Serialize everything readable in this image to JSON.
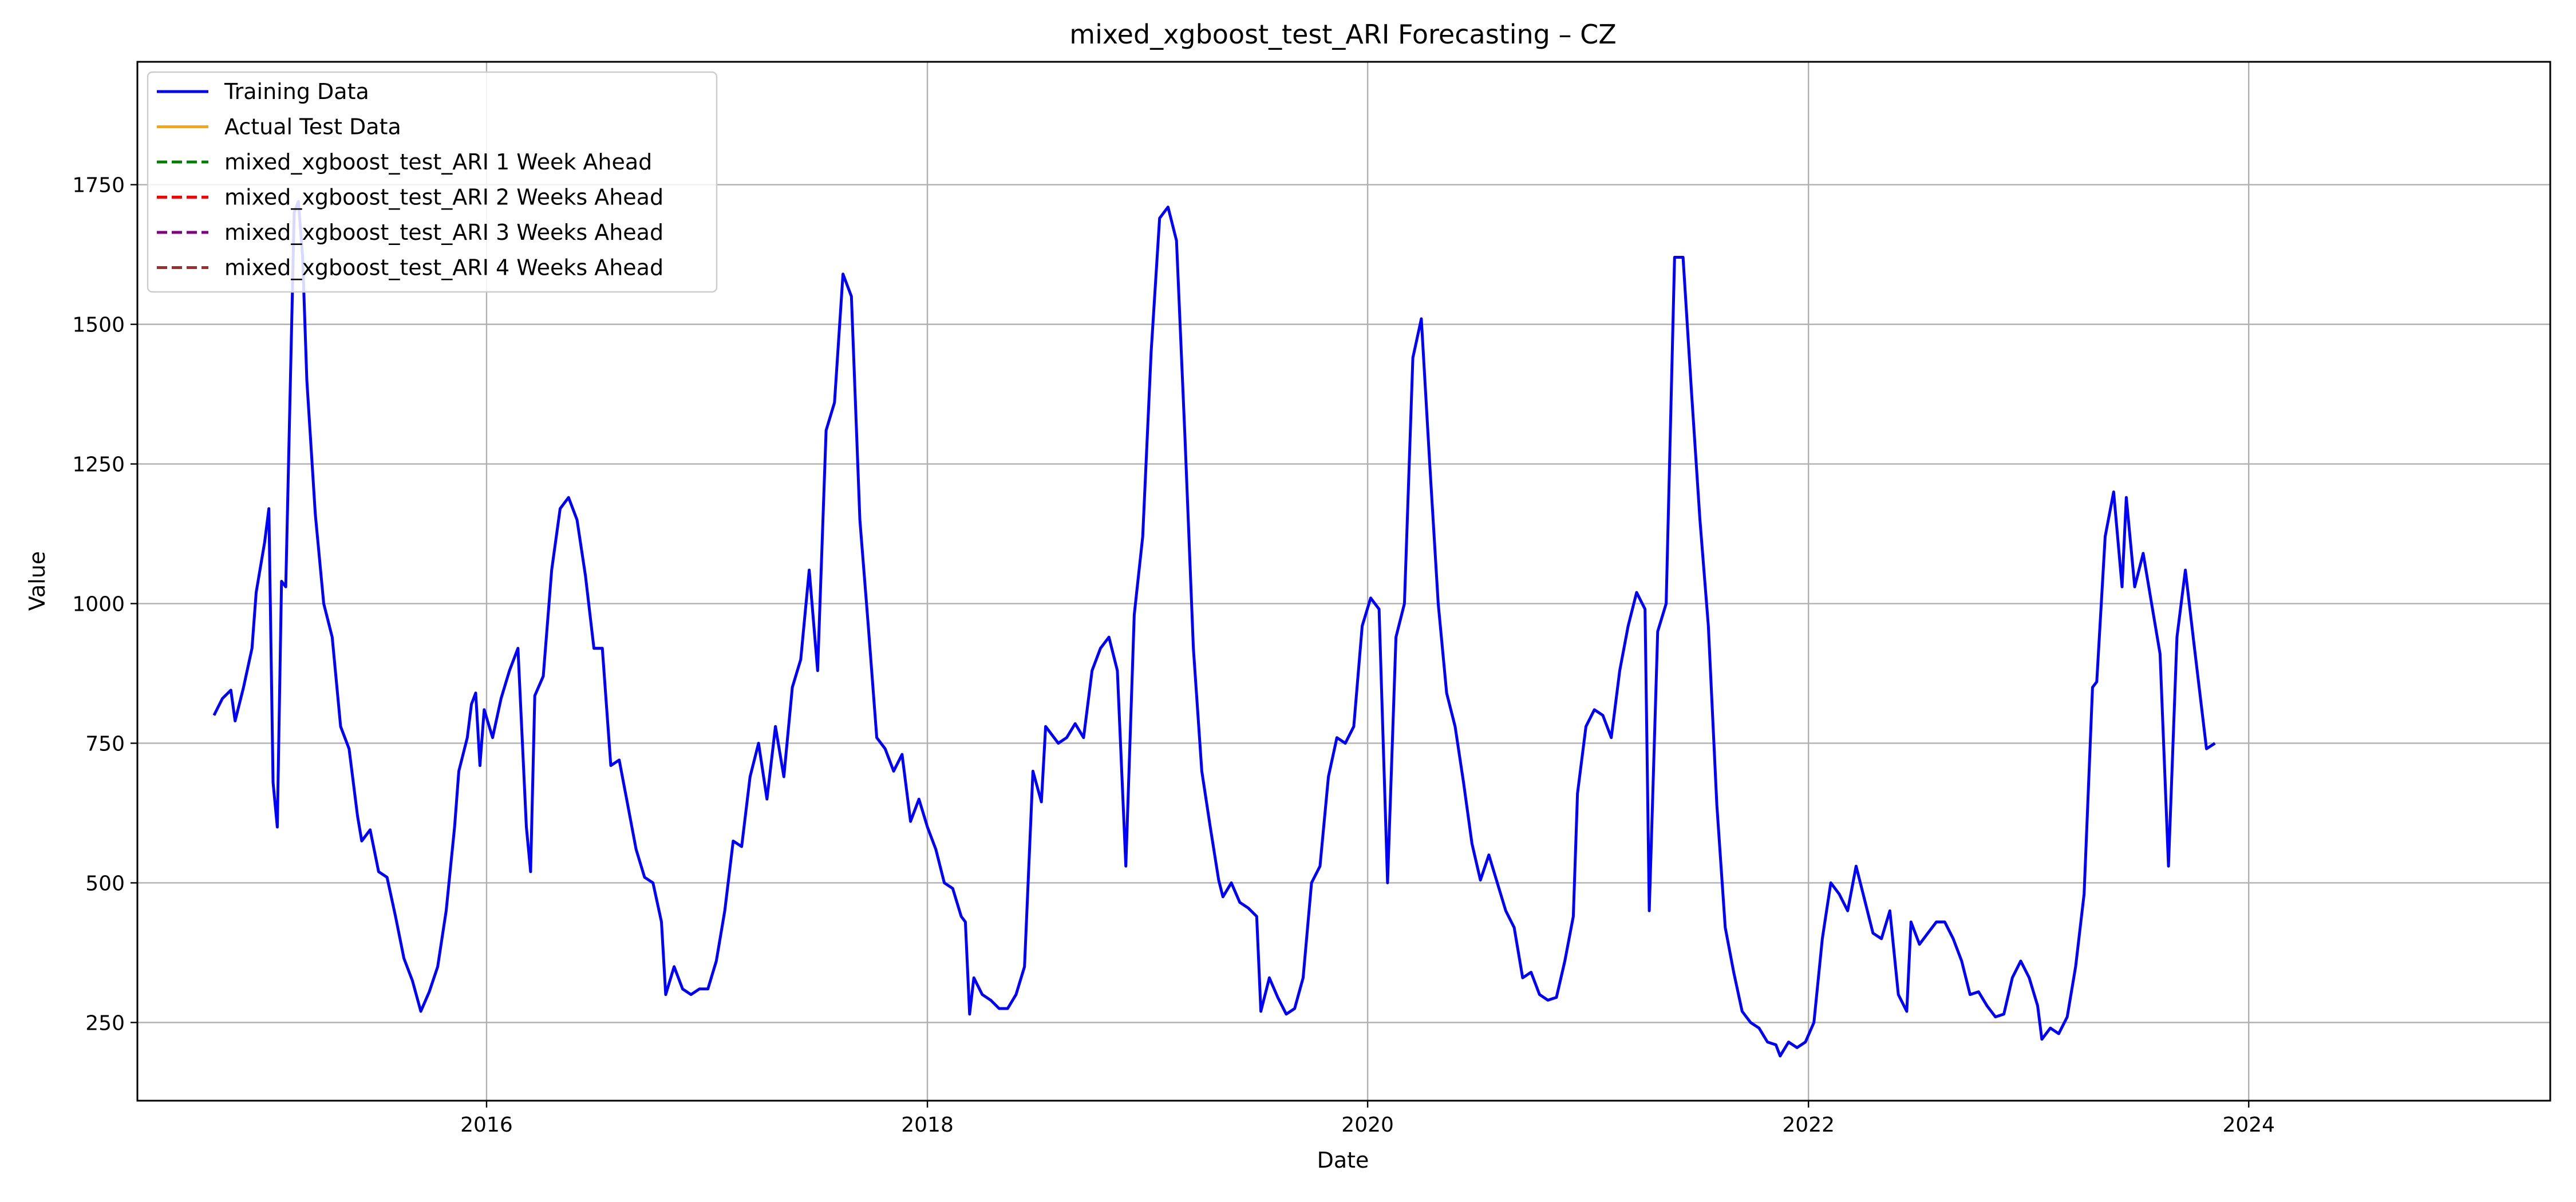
{
  "chart_data": {
    "type": "line",
    "title": "mixed_xgboost_test_ARI Forecasting – CZ",
    "xlabel": "Date",
    "ylabel": "Value",
    "xlim": [
      "2014-06-01",
      "2025-05-15"
    ],
    "ylim": [
      110,
      1970
    ],
    "x_ticks": [
      "2016",
      "2018",
      "2020",
      "2022",
      "2024"
    ],
    "y_ticks": [
      250,
      500,
      750,
      1000,
      1250,
      1500,
      1750
    ],
    "grid": true,
    "legend_position": "top-left",
    "series": [
      {
        "name": "Training Data",
        "color": "#0000ff",
        "style": "solid",
        "points": [
          [
            "2014-10-06",
            800
          ],
          [
            "2014-10-20",
            830
          ],
          [
            "2014-11-03",
            845
          ],
          [
            "2014-11-10",
            790
          ],
          [
            "2014-11-24",
            850
          ],
          [
            "2014-12-08",
            920
          ],
          [
            "2014-12-15",
            1020
          ],
          [
            "2014-12-29",
            1110
          ],
          [
            "2015-01-05",
            1170
          ],
          [
            "2015-01-12",
            680
          ],
          [
            "2015-01-19",
            600
          ],
          [
            "2015-01-26",
            1040
          ],
          [
            "2015-02-02",
            1030
          ],
          [
            "2015-02-16",
            1700
          ],
          [
            "2015-02-23",
            1720
          ],
          [
            "2015-03-02",
            1620
          ],
          [
            "2015-03-09",
            1400
          ],
          [
            "2015-03-23",
            1160
          ],
          [
            "2015-04-06",
            1000
          ],
          [
            "2015-04-20",
            940
          ],
          [
            "2015-05-04",
            780
          ],
          [
            "2015-05-18",
            740
          ],
          [
            "2015-06-01",
            620
          ],
          [
            "2015-06-08",
            575
          ],
          [
            "2015-06-22",
            595
          ],
          [
            "2015-07-06",
            520
          ],
          [
            "2015-07-20",
            510
          ],
          [
            "2015-08-03",
            440
          ],
          [
            "2015-08-17",
            365
          ],
          [
            "2015-08-31",
            325
          ],
          [
            "2015-09-14",
            270
          ],
          [
            "2015-09-28",
            305
          ],
          [
            "2015-10-12",
            350
          ],
          [
            "2015-10-26",
            450
          ],
          [
            "2015-11-09",
            600
          ],
          [
            "2015-11-16",
            700
          ],
          [
            "2015-11-30",
            760
          ],
          [
            "2015-12-07",
            820
          ],
          [
            "2015-12-14",
            840
          ],
          [
            "2015-12-21",
            710
          ],
          [
            "2015-12-28",
            810
          ],
          [
            "2016-01-11",
            760
          ],
          [
            "2016-01-25",
            830
          ],
          [
            "2016-02-08",
            880
          ],
          [
            "2016-02-22",
            920
          ],
          [
            "2016-03-07",
            600
          ],
          [
            "2016-03-14",
            520
          ],
          [
            "2016-03-21",
            835
          ],
          [
            "2016-04-04",
            870
          ],
          [
            "2016-04-18",
            1060
          ],
          [
            "2016-05-02",
            1170
          ],
          [
            "2016-05-16",
            1190
          ],
          [
            "2016-05-30",
            1150
          ],
          [
            "2016-06-13",
            1050
          ],
          [
            "2016-06-27",
            920
          ],
          [
            "2016-07-11",
            920
          ],
          [
            "2016-07-25",
            710
          ],
          [
            "2016-08-08",
            720
          ],
          [
            "2016-08-22",
            640
          ],
          [
            "2016-09-05",
            560
          ],
          [
            "2016-09-19",
            510
          ],
          [
            "2016-10-03",
            500
          ],
          [
            "2016-10-17",
            430
          ],
          [
            "2016-10-24",
            300
          ],
          [
            "2016-11-07",
            350
          ],
          [
            "2016-11-21",
            310
          ],
          [
            "2016-12-05",
            300
          ],
          [
            "2016-12-19",
            310
          ],
          [
            "2017-01-02",
            310
          ],
          [
            "2017-01-16",
            360
          ],
          [
            "2017-01-30",
            450
          ],
          [
            "2017-02-13",
            575
          ],
          [
            "2017-02-27",
            565
          ],
          [
            "2017-03-13",
            690
          ],
          [
            "2017-03-27",
            750
          ],
          [
            "2017-04-10",
            650
          ],
          [
            "2017-04-24",
            780
          ],
          [
            "2017-05-08",
            690
          ],
          [
            "2017-05-22",
            850
          ],
          [
            "2017-06-05",
            900
          ],
          [
            "2017-06-19",
            1060
          ],
          [
            "2017-07-03",
            880
          ],
          [
            "2017-07-17",
            1310
          ],
          [
            "2017-07-31",
            1360
          ],
          [
            "2017-08-14",
            1590
          ],
          [
            "2017-08-28",
            1550
          ],
          [
            "2017-09-11",
            1150
          ],
          [
            "2017-09-25",
            960
          ],
          [
            "2017-10-09",
            760
          ],
          [
            "2017-10-23",
            740
          ],
          [
            "2017-11-06",
            700
          ],
          [
            "2017-11-20",
            730
          ],
          [
            "2017-12-04",
            610
          ],
          [
            "2017-12-18",
            650
          ],
          [
            "2018-01-01",
            600
          ],
          [
            "2018-01-15",
            560
          ],
          [
            "2018-01-29",
            500
          ],
          [
            "2018-02-12",
            490
          ],
          [
            "2018-02-26",
            440
          ],
          [
            "2018-03-05",
            430
          ],
          [
            "2018-03-12",
            265
          ],
          [
            "2018-03-19",
            330
          ],
          [
            "2018-04-02",
            300
          ],
          [
            "2018-04-16",
            290
          ],
          [
            "2018-04-30",
            275
          ],
          [
            "2018-05-14",
            275
          ],
          [
            "2018-05-28",
            300
          ],
          [
            "2018-06-11",
            350
          ],
          [
            "2018-06-25",
            700
          ],
          [
            "2018-07-09",
            645
          ],
          [
            "2018-07-16",
            780
          ],
          [
            "2018-08-06",
            750
          ],
          [
            "2018-08-20",
            760
          ],
          [
            "2018-09-03",
            785
          ],
          [
            "2018-09-17",
            760
          ],
          [
            "2018-10-01",
            880
          ],
          [
            "2018-10-15",
            920
          ],
          [
            "2018-10-29",
            940
          ],
          [
            "2018-11-12",
            880
          ],
          [
            "2018-11-26",
            530
          ],
          [
            "2018-12-10",
            980
          ],
          [
            "2018-12-24",
            1120
          ],
          [
            "2019-01-07",
            1450
          ],
          [
            "2019-01-21",
            1690
          ],
          [
            "2019-02-04",
            1710
          ],
          [
            "2019-02-18",
            1650
          ],
          [
            "2019-03-04",
            1300
          ],
          [
            "2019-03-18",
            920
          ],
          [
            "2019-04-01",
            700
          ],
          [
            "2019-04-15",
            600
          ],
          [
            "2019-04-29",
            505
          ],
          [
            "2019-05-06",
            475
          ],
          [
            "2019-05-20",
            500
          ],
          [
            "2019-06-03",
            465
          ],
          [
            "2019-06-17",
            455
          ],
          [
            "2019-07-01",
            440
          ],
          [
            "2019-07-08",
            270
          ],
          [
            "2019-07-22",
            330
          ],
          [
            "2019-08-05",
            295
          ],
          [
            "2019-08-19",
            265
          ],
          [
            "2019-09-02",
            275
          ],
          [
            "2019-09-16",
            330
          ],
          [
            "2019-09-30",
            500
          ],
          [
            "2019-10-14",
            530
          ],
          [
            "2019-10-28",
            690
          ],
          [
            "2019-11-11",
            760
          ],
          [
            "2019-11-25",
            750
          ],
          [
            "2019-12-09",
            780
          ],
          [
            "2019-12-23",
            960
          ],
          [
            "2020-01-06",
            1010
          ],
          [
            "2020-01-20",
            990
          ],
          [
            "2020-02-03",
            500
          ],
          [
            "2020-02-17",
            940
          ],
          [
            "2020-03-02",
            1000
          ],
          [
            "2020-03-16",
            1440
          ],
          [
            "2020-03-30",
            1510
          ],
          [
            "2020-04-13",
            1250
          ],
          [
            "2020-04-27",
            1000
          ],
          [
            "2020-05-11",
            840
          ],
          [
            "2020-05-25",
            780
          ],
          [
            "2020-06-08",
            680
          ],
          [
            "2020-06-22",
            570
          ],
          [
            "2020-07-06",
            505
          ],
          [
            "2020-07-20",
            550
          ],
          [
            "2020-08-03",
            500
          ],
          [
            "2020-08-17",
            450
          ],
          [
            "2020-08-31",
            420
          ],
          [
            "2020-09-14",
            330
          ],
          [
            "2020-09-28",
            340
          ],
          [
            "2020-10-12",
            300
          ],
          [
            "2020-10-26",
            290
          ],
          [
            "2020-11-09",
            295
          ],
          [
            "2020-11-23",
            360
          ],
          [
            "2020-12-07",
            440
          ],
          [
            "2020-12-14",
            660
          ],
          [
            "2020-12-28",
            780
          ],
          [
            "2021-01-11",
            810
          ],
          [
            "2021-01-25",
            800
          ],
          [
            "2021-02-08",
            760
          ],
          [
            "2021-02-22",
            880
          ],
          [
            "2021-03-08",
            960
          ],
          [
            "2021-03-22",
            1020
          ],
          [
            "2021-04-05",
            990
          ],
          [
            "2021-04-12",
            450
          ],
          [
            "2021-04-26",
            950
          ],
          [
            "2021-05-10",
            1000
          ],
          [
            "2021-05-24",
            1620
          ],
          [
            "2021-06-07",
            1620
          ],
          [
            "2021-06-21",
            1380
          ],
          [
            "2021-07-05",
            1150
          ],
          [
            "2021-07-19",
            960
          ],
          [
            "2021-08-02",
            640
          ],
          [
            "2021-08-16",
            420
          ],
          [
            "2021-08-30",
            340
          ],
          [
            "2021-09-13",
            270
          ],
          [
            "2021-09-27",
            250
          ],
          [
            "2021-10-11",
            240
          ],
          [
            "2021-10-25",
            215
          ],
          [
            "2021-11-08",
            210
          ],
          [
            "2021-11-15",
            190
          ],
          [
            "2021-11-29",
            215
          ],
          [
            "2021-12-13",
            205
          ],
          [
            "2021-12-27",
            215
          ],
          [
            "2022-01-10",
            250
          ],
          [
            "2022-01-24",
            400
          ],
          [
            "2022-02-07",
            500
          ],
          [
            "2022-02-21",
            480
          ],
          [
            "2022-03-07",
            450
          ],
          [
            "2022-03-21",
            530
          ],
          [
            "2022-04-04",
            470
          ],
          [
            "2022-04-18",
            410
          ],
          [
            "2022-05-02",
            400
          ],
          [
            "2022-05-16",
            450
          ],
          [
            "2022-05-30",
            300
          ],
          [
            "2022-06-13",
            270
          ],
          [
            "2022-06-20",
            430
          ],
          [
            "2022-07-04",
            390
          ],
          [
            "2022-07-18",
            410
          ],
          [
            "2022-08-01",
            430
          ],
          [
            "2022-08-15",
            430
          ],
          [
            "2022-08-29",
            400
          ],
          [
            "2022-09-12",
            360
          ],
          [
            "2022-09-26",
            300
          ],
          [
            "2022-10-10",
            305
          ],
          [
            "2022-10-24",
            280
          ],
          [
            "2022-11-07",
            260
          ],
          [
            "2022-11-21",
            265
          ],
          [
            "2022-12-05",
            330
          ],
          [
            "2022-12-19",
            360
          ],
          [
            "2023-01-02",
            330
          ],
          [
            "2023-01-16",
            280
          ],
          [
            "2023-01-23",
            220
          ],
          [
            "2023-02-06",
            240
          ],
          [
            "2023-02-20",
            230
          ],
          [
            "2023-03-06",
            260
          ],
          [
            "2023-03-20",
            350
          ],
          [
            "2023-04-03",
            480
          ],
          [
            "2023-04-17",
            850
          ],
          [
            "2023-04-24",
            860
          ],
          [
            "2023-05-08",
            1120
          ],
          [
            "2023-05-22",
            1200
          ],
          [
            "2023-06-05",
            1030
          ],
          [
            "2023-06-12",
            1190
          ],
          [
            "2023-06-26",
            1030
          ],
          [
            "2023-07-10",
            1090
          ],
          [
            "2023-07-24",
            1000
          ],
          [
            "2023-08-07",
            910
          ],
          [
            "2023-08-21",
            530
          ],
          [
            "2023-09-04",
            940
          ],
          [
            "2023-09-18",
            1060
          ],
          [
            "2023-10-02",
            930
          ],
          [
            "2023-10-23",
            740
          ],
          [
            "2023-11-06",
            750
          ]
        ]
      },
      {
        "name": "Actual Test Data",
        "color": "#ffa500",
        "style": "solid",
        "points": []
      },
      {
        "name": "mixed_xgboost_test_ARI 1 Week Ahead",
        "color": "#008000",
        "style": "dashed",
        "points": []
      },
      {
        "name": "mixed_xgboost_test_ARI 2 Weeks Ahead",
        "color": "#ff0000",
        "style": "dashed",
        "points": []
      },
      {
        "name": "mixed_xgboost_test_ARI 3 Weeks Ahead",
        "color": "#800080",
        "style": "dashed",
        "points": []
      },
      {
        "name": "mixed_xgboost_test_ARI 4 Weeks Ahead",
        "color": "#a52a2a",
        "style": "dashed",
        "points": []
      }
    ]
  }
}
